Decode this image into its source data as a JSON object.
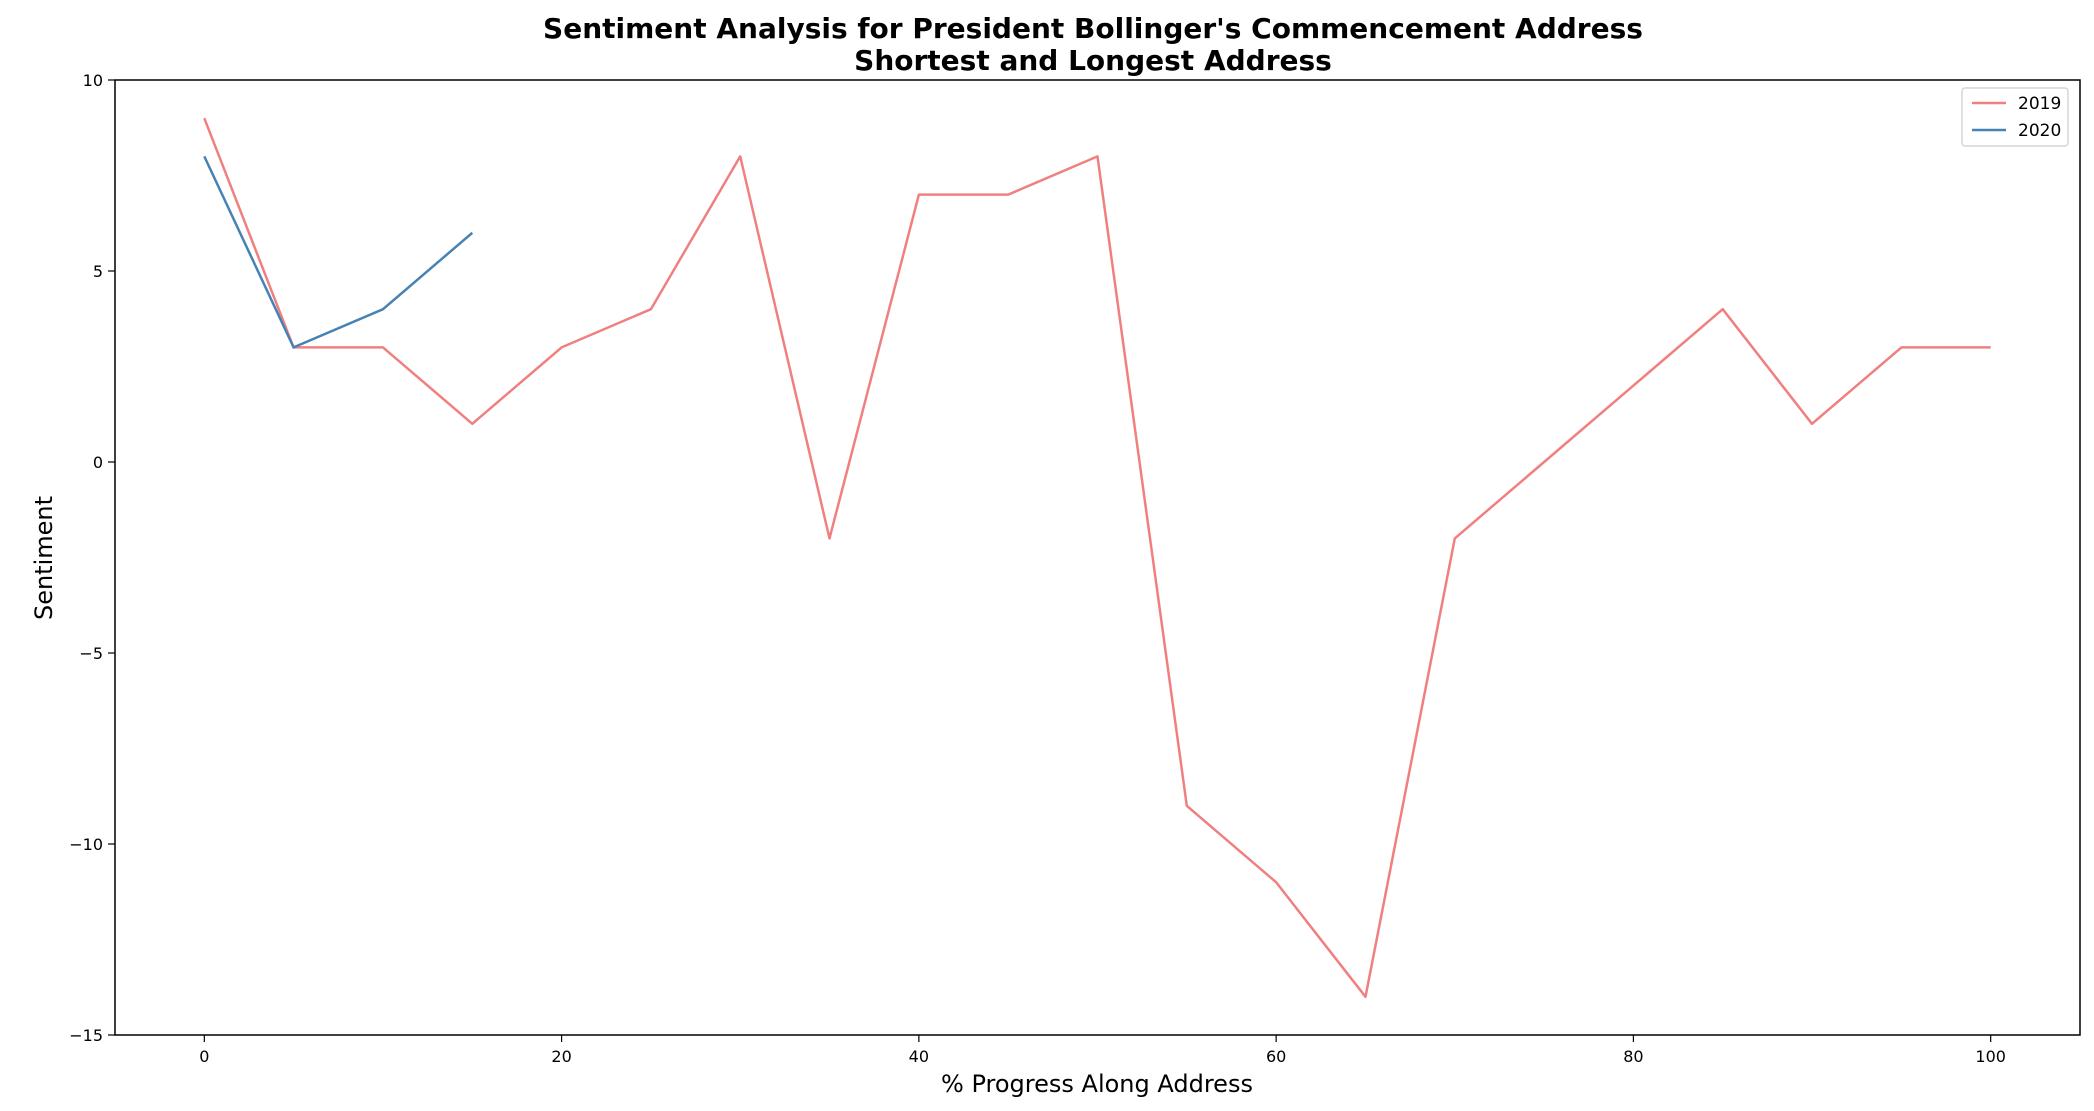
{
  "chart_data": {
    "type": "line",
    "title": "Sentiment Analysis for President Bollinger's Commencement Address",
    "subtitle": "Shortest and Longest Address",
    "xlabel": "% Progress Along Address",
    "ylabel": "Sentiment",
    "xlim": [
      -5,
      105
    ],
    "ylim": [
      -15,
      10
    ],
    "xticks": [
      0,
      20,
      40,
      60,
      80,
      100
    ],
    "yticks": [
      -15,
      -10,
      -5,
      0,
      5,
      10
    ],
    "xtick_labels": [
      "0",
      "20",
      "40",
      "60",
      "80",
      "100"
    ],
    "ytick_labels": [
      "−15",
      "−10",
      "−5",
      "0",
      "5",
      "10"
    ],
    "grid": false,
    "legend_position": "top-right",
    "series": [
      {
        "name": "2019",
        "color": "#f08080",
        "x": [
          0,
          5,
          10,
          15,
          20,
          25,
          30,
          35,
          40,
          45,
          50,
          55,
          60,
          65,
          70,
          75,
          80,
          85,
          90,
          95,
          100
        ],
        "values": [
          9,
          3,
          3,
          1,
          3,
          4,
          8,
          -2,
          7,
          7,
          8,
          -9,
          -11,
          -14,
          -2,
          0,
          2,
          4,
          1,
          3,
          3
        ]
      },
      {
        "name": "2020",
        "color": "#4682b4",
        "x": [
          0,
          5,
          10,
          15
        ],
        "values": [
          8,
          3,
          4,
          6
        ]
      }
    ]
  }
}
